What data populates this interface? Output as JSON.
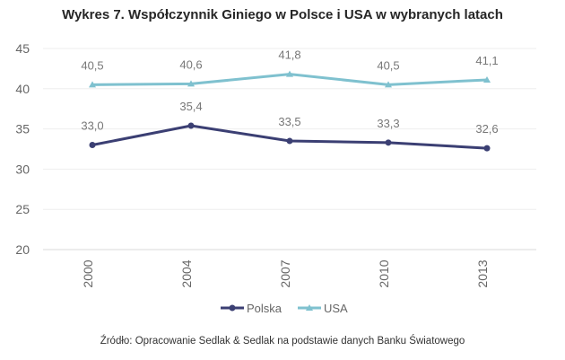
{
  "chart_data": {
    "type": "line",
    "title": "Wykres 7. Współczynnik Giniego w Polsce i USA w wybranych latach",
    "categories": [
      "2000",
      "2004",
      "2007",
      "2010",
      "2013"
    ],
    "series": [
      {
        "name": "Polska",
        "values": [
          33.0,
          35.4,
          33.5,
          33.3,
          32.6
        ],
        "labels": [
          "33,0",
          "35,4",
          "33,5",
          "33,3",
          "32,6"
        ],
        "color": "#3b3f73",
        "marker": "circle"
      },
      {
        "name": "USA",
        "values": [
          40.5,
          40.6,
          41.8,
          40.5,
          41.1
        ],
        "labels": [
          "40,5",
          "40,6",
          "41,8",
          "40,5",
          "41,1"
        ],
        "color": "#7fc1cf",
        "marker": "triangle"
      }
    ],
    "yticks": [
      "20",
      "25",
      "30",
      "35",
      "40",
      "45"
    ],
    "ylim": [
      20,
      45
    ],
    "grid": true,
    "legend": "bottom",
    "source": "Źródło: Opracowanie Sedlak & Sedlak na podstawie danych Banku Światowego"
  }
}
